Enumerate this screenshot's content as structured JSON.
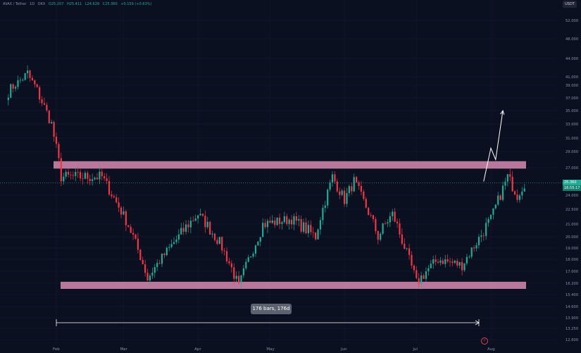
{
  "header": {
    "symbol": "AVAX / Tether",
    "interval": "1D",
    "exchange": "OKX",
    "open": "O25.207",
    "high": "H25.411",
    "low": "L24.629",
    "close": "C25.360",
    "change": "+0.159 (+0.63%)"
  },
  "quote_currency": "USDT",
  "price_tag": {
    "last": "25.360",
    "timer": "16:55:17"
  },
  "measure_label": "176 bars, 176d",
  "icons": {
    "bottom": "lightning-icon"
  },
  "colors": {
    "background": "#0b1021",
    "bull": "#22ab94",
    "bear": "#f23645",
    "zone": "#d88ab0"
  },
  "chart_data": {
    "type": "candlestick",
    "x_labels": [
      "Feb",
      "Mar",
      "Apr",
      "May",
      "Jun",
      "Jul",
      "Aug"
    ],
    "y_ticks": [
      52,
      48,
      44,
      41,
      39,
      37,
      35,
      33,
      31,
      29,
      27,
      24,
      22.5,
      21,
      20,
      19,
      18,
      17,
      16.2,
      15.4,
      14.6,
      13.9,
      13.25,
      12.6
    ],
    "y_tick_labels": [
      "52.000",
      "48.000",
      "44.000",
      "41.000",
      "39.000",
      "37.000",
      "35.000",
      "33.000",
      "31.000",
      "29.000",
      "27.000",
      "24.000",
      "22.500",
      "21.000",
      "20.000",
      "19.000",
      "18.000",
      "17.000",
      "16.200",
      "15.400",
      "14.600",
      "13.900",
      "13.250",
      "12.600"
    ],
    "resistance_zone": {
      "low": 26.9,
      "high": 27.8
    },
    "support_zone": {
      "low": 15.8,
      "high": 16.3
    },
    "projection": [
      {
        "date": "2023-07-29",
        "price": 25.5
      },
      {
        "date": "2023-08-01",
        "price": 29.5
      },
      {
        "date": "2023-08-03",
        "price": 28.0
      },
      {
        "date": "2023-08-06",
        "price": 35.0
      }
    ],
    "measure": {
      "from": "2023-02-01",
      "to": "2023-07-27",
      "bars": 176
    },
    "key_points": [
      {
        "date": "2023-01-12",
        "price": 38.0
      },
      {
        "date": "2023-01-20",
        "price": 41.5
      },
      {
        "date": "2023-01-30",
        "price": 33.0
      },
      {
        "date": "2023-02-03",
        "price": 26.0
      },
      {
        "date": "2023-02-20",
        "price": 26.0
      },
      {
        "date": "2023-03-05",
        "price": 20.0
      },
      {
        "date": "2023-03-11",
        "price": 16.5
      },
      {
        "date": "2023-03-22",
        "price": 19.5
      },
      {
        "date": "2023-04-01",
        "price": 22.0
      },
      {
        "date": "2023-04-10",
        "price": 19.5
      },
      {
        "date": "2023-04-18",
        "price": 15.9
      },
      {
        "date": "2023-04-28",
        "price": 21.0
      },
      {
        "date": "2023-05-10",
        "price": 21.5
      },
      {
        "date": "2023-05-20",
        "price": 20.0
      },
      {
        "date": "2023-05-27",
        "price": 26.0
      },
      {
        "date": "2023-06-01",
        "price": 23.5
      },
      {
        "date": "2023-06-05",
        "price": 25.5
      },
      {
        "date": "2023-06-15",
        "price": 20.0
      },
      {
        "date": "2023-06-21",
        "price": 22.0
      },
      {
        "date": "2023-07-01",
        "price": 16.2
      },
      {
        "date": "2023-07-10",
        "price": 18.0
      },
      {
        "date": "2023-07-20",
        "price": 17.5
      },
      {
        "date": "2023-08-01",
        "price": 21.5
      },
      {
        "date": "2023-08-08",
        "price": 26.0
      },
      {
        "date": "2023-08-12",
        "price": 24.0
      },
      {
        "date": "2023-08-15",
        "price": 25.36
      }
    ]
  }
}
